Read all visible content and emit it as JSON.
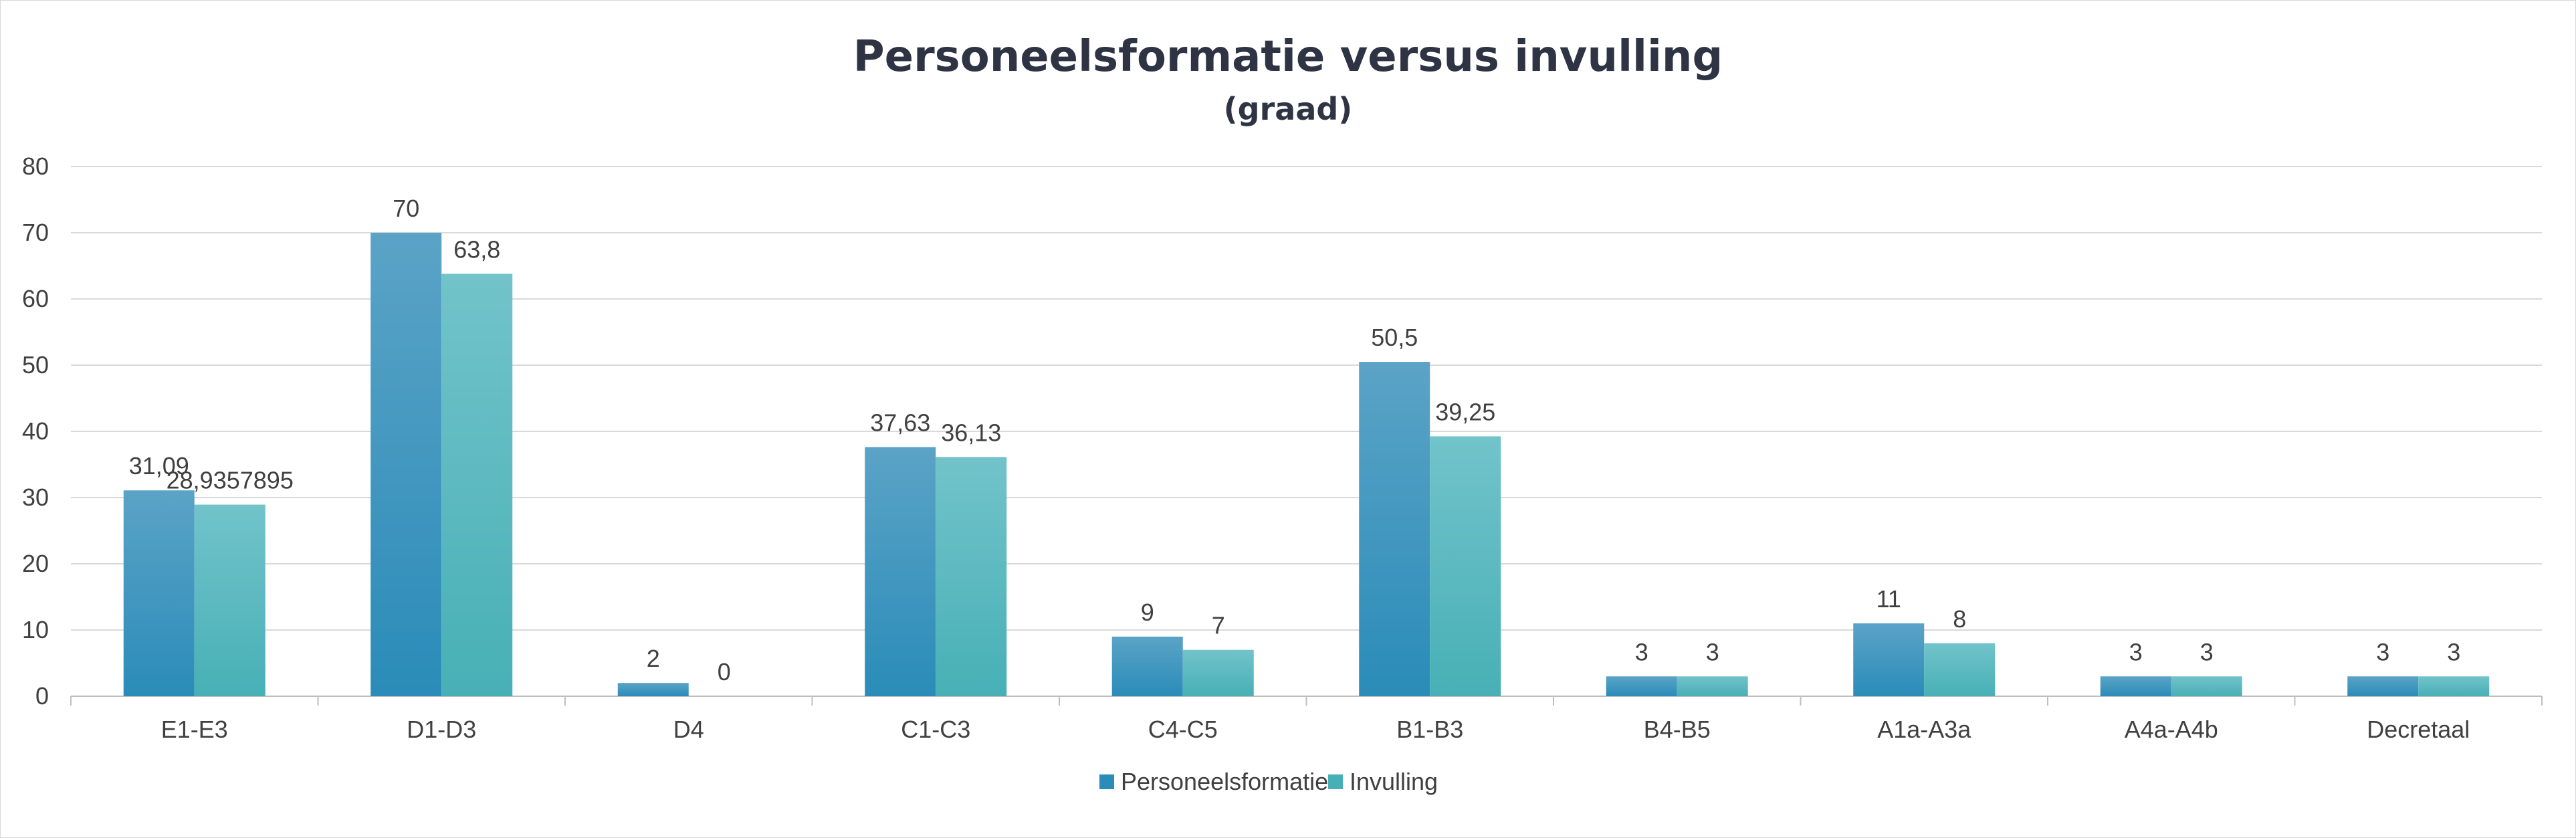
{
  "chart_data": {
    "type": "bar",
    "title": "Personeelsformatie versus invulling",
    "subtitle": "(graad)",
    "xlabel": "",
    "ylabel": "",
    "categories": [
      "E1-E3",
      "D1-D3",
      "D4",
      "C1-C3",
      "C4-C5",
      "B1-B3",
      "B4-B5",
      "A1a-A3a",
      "A4a-A4b",
      "Decretaal"
    ],
    "series": [
      {
        "name": "Personeelsformatie",
        "values": [
          31.09,
          70,
          2,
          37.63,
          9,
          50.5,
          3,
          11,
          3,
          3
        ],
        "labels": [
          "31,09",
          "70",
          "2",
          "37,63",
          "9",
          "50,5",
          "3",
          "11",
          "3",
          "3"
        ],
        "color_top": "#5ba3c7",
        "color_bottom": "#2a8cb8"
      },
      {
        "name": "Invulling",
        "values": [
          28.9357895,
          63.8,
          0,
          36.13,
          7,
          39.25,
          3,
          8,
          3,
          3
        ],
        "labels": [
          "28,9357895",
          "63,8",
          "0",
          "36,13",
          "7",
          "39,25",
          "3",
          "8",
          "3",
          "3"
        ],
        "color_top": "#72c3ca",
        "color_bottom": "#47b0b6"
      }
    ],
    "ylim": [
      0,
      80
    ],
    "yticks": [
      0,
      10,
      20,
      30,
      40,
      50,
      60,
      70,
      80
    ],
    "grid": true,
    "legend_position": "bottom"
  }
}
